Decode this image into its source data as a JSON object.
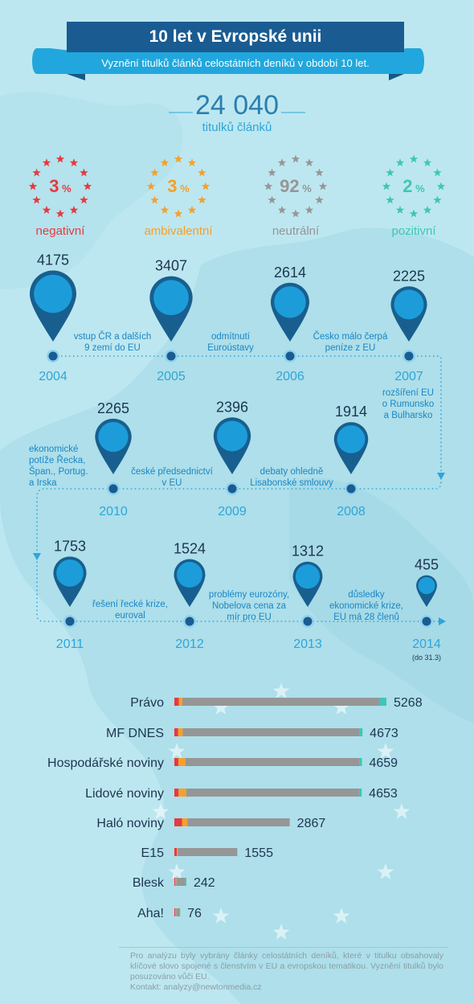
{
  "header": {
    "title": "10 let v Evropské unii",
    "subtitle": "Vyznění titulků článků celostátních deníků v období 10 let."
  },
  "summary": {
    "total": "24 040",
    "total_label": "titulků článků"
  },
  "sentiments": [
    {
      "pct": "3",
      "unit": "%",
      "label": "negativní",
      "color": "#e63a3f"
    },
    {
      "pct": "3",
      "unit": "%",
      "label": "ambivalentní",
      "color": "#f4a02c"
    },
    {
      "pct": "92",
      "unit": "%",
      "label": "neutrální",
      "color": "#969696"
    },
    {
      "pct": "2",
      "unit": "%",
      "label": "pozitivní",
      "color": "#3fc6b5"
    }
  ],
  "timeline": {
    "events": [
      "vstup ČR a dalších\n9 zemí do EU",
      "odmítnutí\nEuroústavy",
      "Česko málo čerpá\npeníze z EU",
      "rozšíření EU\no Rumunsko\na Bulharsko",
      "debaty ohledně\nLisabonské smlouvy",
      "české předsednictví\nv EU",
      "ekonomické\npotíže Řecka,\nŠpan., Portug.\na Irska",
      "řešení řecké krize,\neuroval",
      "problémy eurozóny,\nNobelova cena za\nmír pro EU",
      "důsledky\nekonomické krize,\nEU má 28 členů"
    ],
    "note_2014": "(do 31.3)"
  },
  "chart_data": [
    {
      "type": "bubble-timeline",
      "x": [
        "2004",
        "2005",
        "2006",
        "2007",
        "2008",
        "2009",
        "2010",
        "2011",
        "2012",
        "2013",
        "2014"
      ],
      "values": [
        4175,
        3407,
        2614,
        2225,
        1914,
        2396,
        2265,
        1753,
        1524,
        1312,
        455
      ]
    },
    {
      "type": "bar",
      "stacked": true,
      "orientation": "horizontal",
      "categories": [
        "Právo",
        "MF DNES",
        "Hospodářské noviny",
        "Lidové noviny",
        "Haló noviny",
        "E15",
        "Blesk",
        "Aha!"
      ],
      "totals": [
        5268,
        4673,
        4659,
        4653,
        2867,
        1555,
        242,
        76
      ],
      "series": [
        {
          "name": "negativní",
          "color": "#e63a3f",
          "values": [
            110,
            95,
            100,
            105,
            190,
            60,
            8,
            2
          ]
        },
        {
          "name": "ambivalentní",
          "color": "#f4a02c",
          "values": [
            90,
            115,
            180,
            190,
            140,
            15,
            4,
            1
          ]
        },
        {
          "name": "neutrální",
          "color": "#969696",
          "values": [
            4900,
            4393,
            4319,
            4308,
            2537,
            1480,
            227,
            71
          ]
        },
        {
          "name": "pozitivní",
          "color": "#3fc6b5",
          "values": [
            168,
            70,
            60,
            50,
            0,
            0,
            3,
            2
          ]
        }
      ]
    }
  ],
  "footer": {
    "note": "Pro analýzu byly vybrány články celostátních deníků, které v titulku obsahovaly klíčové slovo spojené s členstvím v EU a evropskou tematikou. Vyznění titulků bylo posuzováno vůči EU.",
    "contact": "Kontakt: analyzy@newtonmedia.cz"
  },
  "colors": {
    "dark_blue": "#1a5c91",
    "blue": "#21a7dd",
    "pin": "#1c9dd9",
    "pin_outline": "#185f8f",
    "background": "#bde7f0"
  }
}
